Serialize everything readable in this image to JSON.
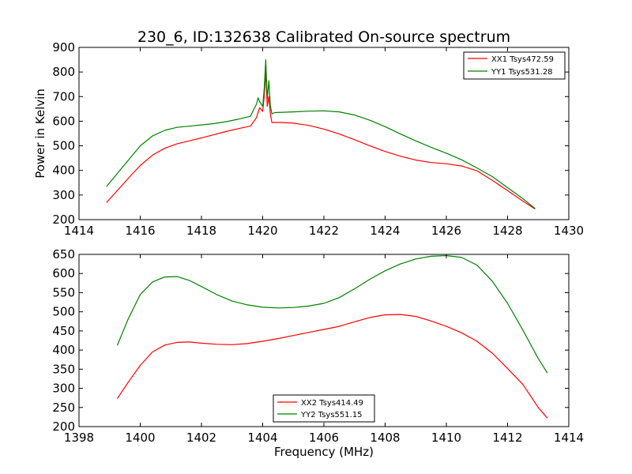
{
  "figure_title": "230_6, ID:132638 Calibrated On-source spectrum",
  "shared_ylabel": "Power in Kelvin",
  "chart_data": [
    {
      "type": "line",
      "title": "230_6, ID:132638 Calibrated On-source spectrum",
      "xlabel": "",
      "ylabel": "Power in Kelvin",
      "xlim": [
        1414,
        1430
      ],
      "ylim": [
        200,
        900
      ],
      "xticks": [
        1414,
        1416,
        1418,
        1420,
        1422,
        1424,
        1426,
        1428,
        1430
      ],
      "yticks": [
        200,
        300,
        400,
        500,
        600,
        700,
        800,
        900
      ],
      "grid": false,
      "legend_position": "top-right",
      "series": [
        {
          "name": "XX1 Tsys472.59",
          "color": "#ff0000",
          "x": [
            1414.9,
            1415.3,
            1415.7,
            1416.0,
            1416.4,
            1416.8,
            1417.2,
            1417.6,
            1418.0,
            1418.4,
            1418.8,
            1419.2,
            1419.6,
            1419.8,
            1419.9,
            1420.0,
            1420.05,
            1420.1,
            1420.15,
            1420.2,
            1420.25,
            1420.3,
            1420.4,
            1420.6,
            1421.0,
            1421.5,
            1422.0,
            1422.5,
            1423.0,
            1423.5,
            1424.0,
            1424.5,
            1425.0,
            1425.5,
            1426.0,
            1426.5,
            1427.0,
            1427.5,
            1428.0,
            1428.5,
            1428.9
          ],
          "y": [
            270,
            325,
            380,
            420,
            462,
            490,
            508,
            520,
            532,
            545,
            558,
            570,
            580,
            615,
            655,
            640,
            700,
            800,
            660,
            700,
            630,
            595,
            595,
            595,
            592,
            583,
            568,
            548,
            525,
            500,
            477,
            458,
            442,
            432,
            427,
            418,
            398,
            360,
            318,
            275,
            243
          ]
        },
        {
          "name": "YY1 Tsys531.28",
          "color": "#008000",
          "x": [
            1414.9,
            1415.3,
            1415.7,
            1416.0,
            1416.4,
            1416.8,
            1417.2,
            1417.6,
            1418.0,
            1418.4,
            1418.8,
            1419.2,
            1419.6,
            1419.8,
            1419.85,
            1419.9,
            1420.0,
            1420.05,
            1420.1,
            1420.15,
            1420.2,
            1420.25,
            1420.3,
            1420.4,
            1421.0,
            1421.5,
            1422.0,
            1422.5,
            1423.0,
            1423.5,
            1424.0,
            1424.5,
            1425.0,
            1425.5,
            1426.0,
            1426.5,
            1427.0,
            1427.5,
            1428.0,
            1428.5,
            1428.9
          ],
          "y": [
            335,
            395,
            455,
            500,
            540,
            563,
            575,
            580,
            585,
            590,
            598,
            608,
            620,
            670,
            695,
            680,
            660,
            730,
            850,
            690,
            765,
            665,
            630,
            635,
            638,
            641,
            642,
            638,
            625,
            604,
            578,
            548,
            520,
            494,
            470,
            443,
            410,
            375,
            330,
            285,
            245
          ]
        }
      ]
    },
    {
      "type": "line",
      "title": "",
      "xlabel": "Frequency (MHz)",
      "ylabel": "",
      "xlim": [
        1398,
        1414
      ],
      "ylim": [
        200,
        650
      ],
      "xticks": [
        1398,
        1400,
        1402,
        1404,
        1406,
        1408,
        1410,
        1412,
        1414
      ],
      "yticks": [
        200,
        250,
        300,
        350,
        400,
        450,
        500,
        550,
        600,
        650
      ],
      "grid": false,
      "legend_position": "bottom-center",
      "series": [
        {
          "name": "XX2 Tsys414.49",
          "color": "#ff0000",
          "x": [
            1399.25,
            1399.6,
            1400.0,
            1400.4,
            1400.8,
            1401.2,
            1401.6,
            1402.0,
            1402.5,
            1403.0,
            1403.5,
            1404.0,
            1404.5,
            1405.0,
            1405.5,
            1406.0,
            1406.5,
            1407.0,
            1407.5,
            1408.0,
            1408.5,
            1409.0,
            1409.5,
            1410.0,
            1410.5,
            1411.0,
            1411.5,
            1412.0,
            1412.5,
            1413.0,
            1413.3
          ],
          "y": [
            273,
            315,
            360,
            395,
            413,
            420,
            421,
            418,
            415,
            414,
            417,
            423,
            430,
            438,
            446,
            454,
            462,
            474,
            485,
            492,
            493,
            488,
            476,
            462,
            445,
            423,
            392,
            352,
            310,
            250,
            222
          ]
        },
        {
          "name": "YY2 Tsys551.15",
          "color": "#008000",
          "x": [
            1399.25,
            1399.6,
            1400.0,
            1400.4,
            1400.8,
            1401.2,
            1401.6,
            1402.0,
            1402.5,
            1403.0,
            1403.5,
            1404.0,
            1404.5,
            1405.0,
            1405.5,
            1406.0,
            1406.5,
            1407.0,
            1407.5,
            1408.0,
            1408.5,
            1409.0,
            1409.5,
            1410.0,
            1410.5,
            1411.0,
            1411.5,
            1412.0,
            1412.5,
            1413.0,
            1413.3
          ],
          "y": [
            412,
            480,
            545,
            578,
            591,
            592,
            582,
            566,
            545,
            528,
            518,
            512,
            510,
            511,
            515,
            522,
            537,
            560,
            585,
            607,
            625,
            638,
            645,
            647,
            642,
            622,
            580,
            522,
            452,
            378,
            340
          ]
        }
      ]
    }
  ]
}
